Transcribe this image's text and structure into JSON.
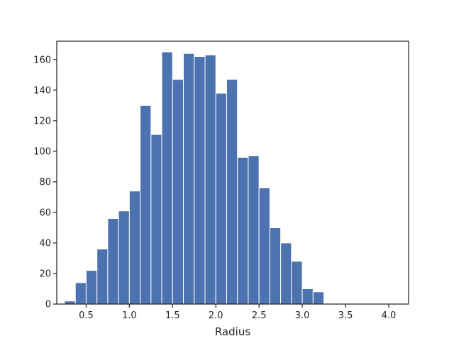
{
  "chart_data": {
    "type": "bar",
    "title": "",
    "xlabel": "Radius",
    "ylabel": "",
    "xlim": [
      0.16,
      4.23
    ],
    "ylim": [
      0,
      172
    ],
    "grid": false,
    "bar_color": "#4c72b0",
    "bin_edges": [
      0.25,
      0.375,
      0.5,
      0.625,
      0.75,
      0.875,
      1.0,
      1.125,
      1.25,
      1.375,
      1.5,
      1.625,
      1.75,
      1.875,
      2.0,
      2.125,
      2.25,
      2.375,
      2.5,
      2.625,
      2.75,
      2.875,
      3.0,
      3.125,
      3.25,
      3.375,
      3.5,
      3.625,
      3.75,
      3.875,
      4.0,
      4.125
    ],
    "counts": [
      2,
      14,
      22,
      36,
      56,
      61,
      74,
      130,
      111,
      165,
      147,
      164,
      162,
      163,
      138,
      147,
      96,
      97,
      76,
      50,
      40,
      28,
      10,
      8,
      0,
      0,
      0,
      0,
      0,
      0,
      0
    ],
    "xticks": [
      0.5,
      1.0,
      1.5,
      2.0,
      2.5,
      3.0,
      3.5,
      4.0
    ],
    "xtick_labels": [
      "0.5",
      "1.0",
      "1.5",
      "2.0",
      "2.5",
      "3.0",
      "3.5",
      "4.0"
    ],
    "yticks": [
      0,
      20,
      40,
      60,
      80,
      100,
      120,
      140,
      160
    ],
    "ytick_labels": [
      "0",
      "20",
      "40",
      "60",
      "80",
      "100",
      "120",
      "140",
      "160"
    ]
  }
}
